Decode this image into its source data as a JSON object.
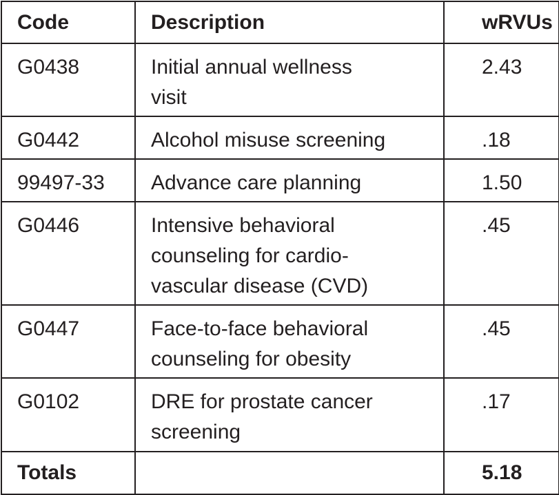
{
  "table": {
    "header": [
      "Code",
      "Description",
      "wRVUs"
    ],
    "rows": [
      [
        "G0438",
        [
          "Initial annual wellness",
          "visit"
        ],
        "2.43"
      ],
      [
        "G0442",
        [
          "Alcohol misuse screening"
        ],
        ".18"
      ],
      [
        "99497-33",
        [
          "Advance care planning"
        ],
        "1.50"
      ],
      [
        "G0446",
        [
          "Intensive behavioral",
          "counseling for cardio-",
          "vascular disease (CVD)"
        ],
        ".45"
      ],
      [
        "G0447",
        [
          "Face-to-face behavioral",
          "counseling for obesity"
        ],
        ".45"
      ],
      [
        "G0102",
        [
          "DRE for prostate cancer",
          "screening"
        ],
        ".17"
      ]
    ],
    "totals": {
      "label": "Totals",
      "value": "5.18"
    }
  }
}
